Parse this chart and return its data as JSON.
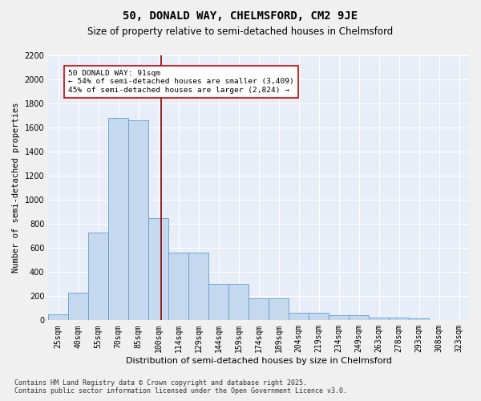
{
  "title": "50, DONALD WAY, CHELMSFORD, CM2 9JE",
  "subtitle": "Size of property relative to semi-detached houses in Chelmsford",
  "xlabel": "Distribution of semi-detached houses by size in Chelmsford",
  "ylabel": "Number of semi-detached properties",
  "categories": [
    "25sqm",
    "40sqm",
    "55sqm",
    "70sqm",
    "85sqm",
    "100sqm",
    "114sqm",
    "129sqm",
    "144sqm",
    "159sqm",
    "174sqm",
    "189sqm",
    "204sqm",
    "219sqm",
    "234sqm",
    "249sqm",
    "263sqm",
    "278sqm",
    "293sqm",
    "308sqm",
    "323sqm"
  ],
  "values": [
    50,
    230,
    730,
    1680,
    1660,
    850,
    560,
    560,
    300,
    300,
    180,
    180,
    65,
    65,
    40,
    40,
    25,
    25,
    15,
    5,
    5
  ],
  "bar_color": "#c5d9ee",
  "bar_edge_color": "#6699cc",
  "background_color": "#e8eef8",
  "grid_color": "#ffffff",
  "vline_color": "#8b0000",
  "vline_x": 5.15,
  "annotation_text": "50 DONALD WAY: 91sqm\n← 54% of semi-detached houses are smaller (3,409)\n45% of semi-detached houses are larger (2,824) →",
  "annotation_box_color": "#ffffff",
  "annotation_border_color": "#cc0000",
  "footnote": "Contains HM Land Registry data © Crown copyright and database right 2025.\nContains public sector information licensed under the Open Government Licence v3.0.",
  "ylim": [
    0,
    2200
  ],
  "yticks": [
    0,
    200,
    400,
    600,
    800,
    1000,
    1200,
    1400,
    1600,
    1800,
    2000,
    2200
  ],
  "title_fontsize": 10,
  "subtitle_fontsize": 8.5,
  "xlabel_fontsize": 8,
  "ylabel_fontsize": 7.5,
  "footnote_fontsize": 6,
  "tick_fontsize": 7
}
